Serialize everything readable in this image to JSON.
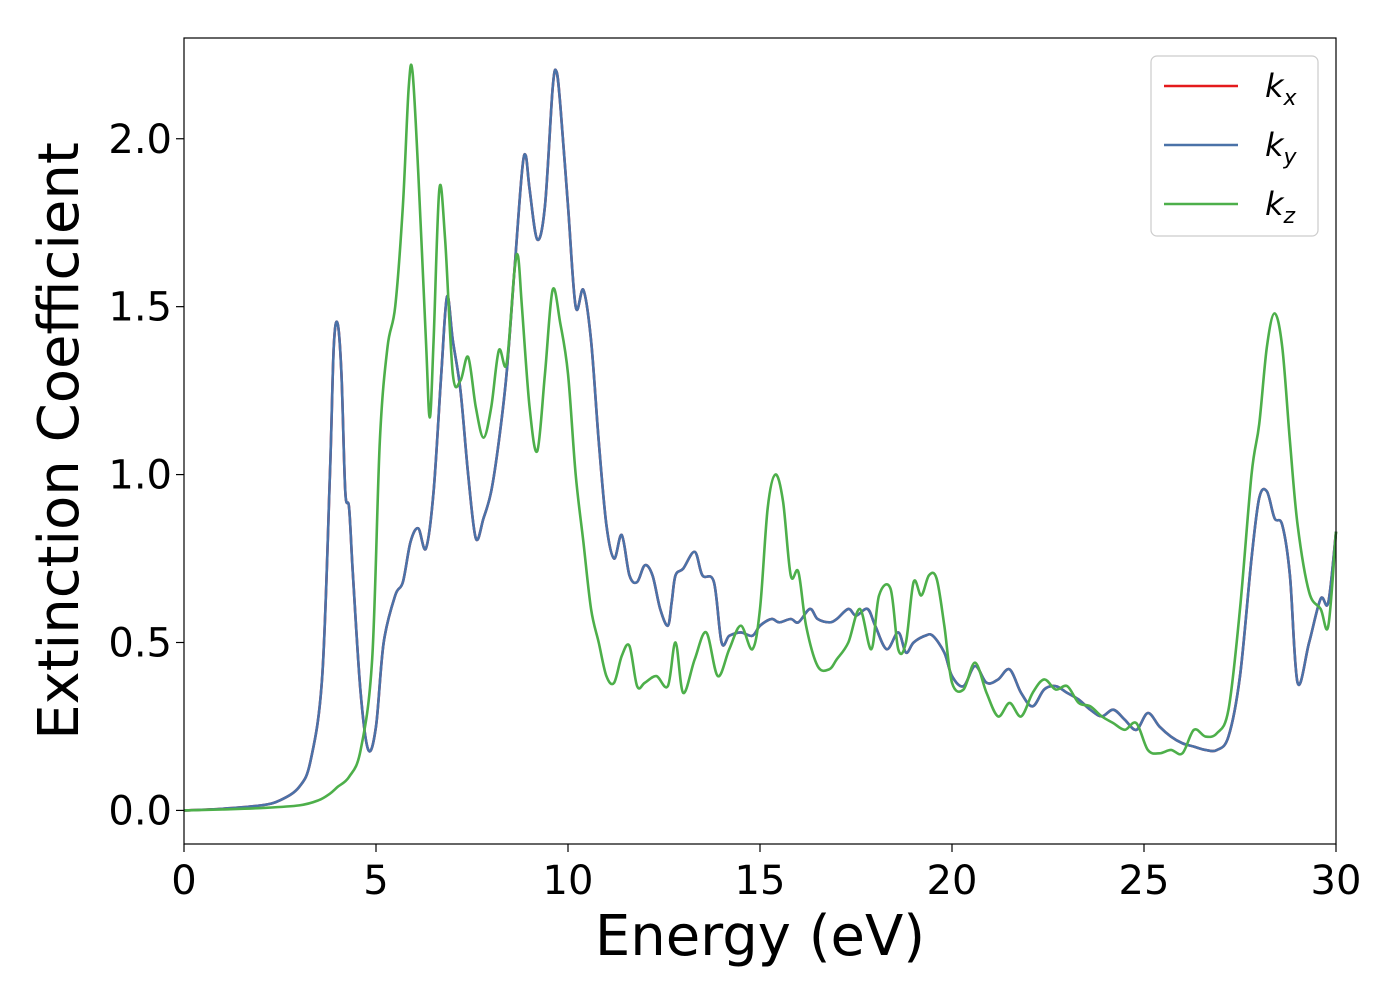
{
  "chart_data": {
    "type": "line",
    "title": "",
    "xlabel": "Energy (eV)",
    "ylabel": "Extinction Coefficient",
    "xlim": [
      0,
      30
    ],
    "ylim": [
      -0.1,
      2.3
    ],
    "xticks": [
      0,
      5,
      10,
      15,
      20,
      25,
      30
    ],
    "xtick_labels": [
      "0",
      "5",
      "10",
      "15",
      "20",
      "25",
      "30"
    ],
    "yticks": [
      0.0,
      0.5,
      1.0,
      1.5,
      2.0
    ],
    "ytick_labels": [
      "0.0",
      "0.5",
      "1.0",
      "1.5",
      "2.0"
    ],
    "grid": false,
    "legend_position": "top-right",
    "series": [
      {
        "name": "k",
        "subscript": "x",
        "color": "#e41a1c",
        "x": [
          0,
          1,
          2,
          2.5,
          3,
          3.3,
          3.6,
          3.8,
          3.9,
          4.0,
          4.1,
          4.2,
          4.3,
          4.4,
          4.6,
          4.8,
          5.0,
          5.2,
          5.5,
          5.7,
          5.9,
          6.1,
          6.3,
          6.5,
          6.7,
          6.85,
          7.0,
          7.2,
          7.4,
          7.6,
          7.8,
          8.0,
          8.2,
          8.4,
          8.6,
          8.8,
          8.9,
          9.0,
          9.2,
          9.4,
          9.6,
          9.7,
          9.8,
          10.0,
          10.2,
          10.4,
          10.6,
          10.8,
          11.0,
          11.2,
          11.4,
          11.6,
          11.8,
          12.0,
          12.2,
          12.4,
          12.6,
          12.7,
          12.8,
          13.0,
          13.3,
          13.5,
          13.8,
          14.0,
          14.2,
          14.5,
          14.8,
          15.0,
          15.3,
          15.5,
          15.8,
          16.0,
          16.3,
          16.5,
          16.8,
          17.0,
          17.3,
          17.5,
          17.8,
          18.0,
          18.3,
          18.6,
          18.8,
          19.0,
          19.3,
          19.5,
          19.8,
          20.0,
          20.3,
          20.6,
          20.9,
          21.2,
          21.5,
          21.8,
          22.1,
          22.4,
          22.7,
          23.0,
          23.3,
          23.6,
          23.9,
          24.2,
          24.5,
          24.8,
          25.1,
          25.4,
          25.7,
          26.0,
          26.3,
          26.6,
          26.9,
          27.2,
          27.5,
          27.8,
          28.0,
          28.2,
          28.4,
          28.6,
          28.8,
          29.0,
          29.3,
          29.6,
          29.8,
          30.0
        ],
        "y": [
          0.0,
          0.005,
          0.015,
          0.03,
          0.07,
          0.15,
          0.4,
          1.0,
          1.38,
          1.45,
          1.3,
          0.95,
          0.9,
          0.7,
          0.35,
          0.18,
          0.25,
          0.5,
          0.64,
          0.68,
          0.8,
          0.84,
          0.78,
          0.95,
          1.3,
          1.53,
          1.4,
          1.25,
          1.0,
          0.81,
          0.87,
          0.95,
          1.1,
          1.3,
          1.6,
          1.9,
          1.95,
          1.85,
          1.7,
          1.8,
          2.15,
          2.2,
          2.1,
          1.8,
          1.5,
          1.55,
          1.4,
          1.1,
          0.85,
          0.75,
          0.82,
          0.7,
          0.68,
          0.73,
          0.7,
          0.6,
          0.55,
          0.62,
          0.7,
          0.72,
          0.77,
          0.7,
          0.68,
          0.5,
          0.52,
          0.53,
          0.52,
          0.55,
          0.57,
          0.56,
          0.57,
          0.56,
          0.6,
          0.57,
          0.56,
          0.57,
          0.6,
          0.58,
          0.6,
          0.55,
          0.48,
          0.53,
          0.47,
          0.5,
          0.52,
          0.52,
          0.47,
          0.4,
          0.37,
          0.43,
          0.38,
          0.39,
          0.42,
          0.35,
          0.31,
          0.36,
          0.37,
          0.35,
          0.33,
          0.3,
          0.28,
          0.3,
          0.27,
          0.24,
          0.29,
          0.25,
          0.22,
          0.2,
          0.19,
          0.18,
          0.18,
          0.22,
          0.4,
          0.75,
          0.93,
          0.95,
          0.87,
          0.85,
          0.7,
          0.38,
          0.5,
          0.63,
          0.62,
          0.83
        ]
      },
      {
        "name": "k",
        "subscript": "y",
        "color": "#4a72a8",
        "x": [
          0,
          1,
          2,
          2.5,
          3,
          3.3,
          3.6,
          3.8,
          3.9,
          4.0,
          4.1,
          4.2,
          4.3,
          4.4,
          4.6,
          4.8,
          5.0,
          5.2,
          5.5,
          5.7,
          5.9,
          6.1,
          6.3,
          6.5,
          6.7,
          6.85,
          7.0,
          7.2,
          7.4,
          7.6,
          7.8,
          8.0,
          8.2,
          8.4,
          8.6,
          8.8,
          8.9,
          9.0,
          9.2,
          9.4,
          9.6,
          9.7,
          9.8,
          10.0,
          10.2,
          10.4,
          10.6,
          10.8,
          11.0,
          11.2,
          11.4,
          11.6,
          11.8,
          12.0,
          12.2,
          12.4,
          12.6,
          12.7,
          12.8,
          13.0,
          13.3,
          13.5,
          13.8,
          14.0,
          14.2,
          14.5,
          14.8,
          15.0,
          15.3,
          15.5,
          15.8,
          16.0,
          16.3,
          16.5,
          16.8,
          17.0,
          17.3,
          17.5,
          17.8,
          18.0,
          18.3,
          18.6,
          18.8,
          19.0,
          19.3,
          19.5,
          19.8,
          20.0,
          20.3,
          20.6,
          20.9,
          21.2,
          21.5,
          21.8,
          22.1,
          22.4,
          22.7,
          23.0,
          23.3,
          23.6,
          23.9,
          24.2,
          24.5,
          24.8,
          25.1,
          25.4,
          25.7,
          26.0,
          26.3,
          26.6,
          26.9,
          27.2,
          27.5,
          27.8,
          28.0,
          28.2,
          28.4,
          28.6,
          28.8,
          29.0,
          29.3,
          29.6,
          29.8,
          30.0
        ],
        "y": [
          0.0,
          0.005,
          0.015,
          0.03,
          0.07,
          0.15,
          0.4,
          1.0,
          1.38,
          1.45,
          1.3,
          0.95,
          0.9,
          0.7,
          0.35,
          0.18,
          0.25,
          0.5,
          0.64,
          0.68,
          0.8,
          0.84,
          0.78,
          0.95,
          1.3,
          1.53,
          1.4,
          1.25,
          1.0,
          0.81,
          0.87,
          0.95,
          1.1,
          1.3,
          1.6,
          1.9,
          1.95,
          1.85,
          1.7,
          1.8,
          2.15,
          2.2,
          2.1,
          1.8,
          1.5,
          1.55,
          1.4,
          1.1,
          0.85,
          0.75,
          0.82,
          0.7,
          0.68,
          0.73,
          0.7,
          0.6,
          0.55,
          0.62,
          0.7,
          0.72,
          0.77,
          0.7,
          0.68,
          0.5,
          0.52,
          0.53,
          0.52,
          0.55,
          0.57,
          0.56,
          0.57,
          0.56,
          0.6,
          0.57,
          0.56,
          0.57,
          0.6,
          0.58,
          0.6,
          0.55,
          0.48,
          0.53,
          0.47,
          0.5,
          0.52,
          0.52,
          0.47,
          0.4,
          0.37,
          0.43,
          0.38,
          0.39,
          0.42,
          0.35,
          0.31,
          0.36,
          0.37,
          0.35,
          0.33,
          0.3,
          0.28,
          0.3,
          0.27,
          0.24,
          0.29,
          0.25,
          0.22,
          0.2,
          0.19,
          0.18,
          0.18,
          0.22,
          0.4,
          0.75,
          0.93,
          0.95,
          0.87,
          0.85,
          0.7,
          0.38,
          0.5,
          0.63,
          0.62,
          0.83
        ]
      },
      {
        "name": "k",
        "subscript": "z",
        "color": "#4daf4a",
        "x": [
          0,
          1,
          2,
          3,
          3.5,
          3.8,
          4.0,
          4.3,
          4.6,
          4.9,
          5.1,
          5.3,
          5.5,
          5.7,
          5.85,
          5.95,
          6.1,
          6.3,
          6.4,
          6.5,
          6.65,
          6.8,
          7.0,
          7.2,
          7.4,
          7.6,
          7.8,
          8.0,
          8.2,
          8.4,
          8.6,
          8.7,
          8.8,
          9.0,
          9.2,
          9.4,
          9.6,
          9.8,
          10.0,
          10.2,
          10.4,
          10.6,
          10.8,
          11.0,
          11.2,
          11.4,
          11.6,
          11.8,
          12.0,
          12.3,
          12.6,
          12.8,
          13.0,
          13.3,
          13.6,
          13.9,
          14.2,
          14.5,
          14.8,
          15.0,
          15.2,
          15.4,
          15.6,
          15.8,
          16.0,
          16.2,
          16.5,
          16.8,
          17.0,
          17.3,
          17.6,
          17.9,
          18.1,
          18.4,
          18.6,
          18.8,
          19.0,
          19.2,
          19.4,
          19.6,
          19.8,
          20.0,
          20.3,
          20.6,
          20.9,
          21.2,
          21.5,
          21.8,
          22.1,
          22.4,
          22.7,
          23.0,
          23.3,
          23.6,
          23.9,
          24.2,
          24.5,
          24.8,
          25.1,
          25.4,
          25.7,
          26.0,
          26.3,
          26.6,
          26.9,
          27.2,
          27.5,
          27.8,
          28.0,
          28.2,
          28.4,
          28.6,
          28.8,
          29.0,
          29.3,
          29.6,
          29.8,
          30.0
        ],
        "y": [
          0.0,
          0.003,
          0.007,
          0.015,
          0.03,
          0.05,
          0.07,
          0.1,
          0.18,
          0.45,
          1.1,
          1.38,
          1.5,
          1.8,
          2.15,
          2.2,
          1.9,
          1.4,
          1.17,
          1.4,
          1.85,
          1.7,
          1.3,
          1.28,
          1.35,
          1.2,
          1.11,
          1.2,
          1.37,
          1.33,
          1.6,
          1.65,
          1.5,
          1.2,
          1.07,
          1.3,
          1.55,
          1.45,
          1.3,
          1.0,
          0.8,
          0.6,
          0.5,
          0.4,
          0.38,
          0.46,
          0.49,
          0.37,
          0.38,
          0.4,
          0.37,
          0.5,
          0.35,
          0.45,
          0.53,
          0.4,
          0.48,
          0.55,
          0.48,
          0.6,
          0.9,
          1.0,
          0.92,
          0.7,
          0.71,
          0.55,
          0.43,
          0.42,
          0.45,
          0.5,
          0.6,
          0.48,
          0.64,
          0.66,
          0.48,
          0.5,
          0.68,
          0.64,
          0.7,
          0.69,
          0.55,
          0.38,
          0.36,
          0.44,
          0.35,
          0.28,
          0.32,
          0.28,
          0.35,
          0.39,
          0.36,
          0.37,
          0.32,
          0.31,
          0.28,
          0.26,
          0.24,
          0.26,
          0.18,
          0.17,
          0.18,
          0.17,
          0.24,
          0.22,
          0.23,
          0.3,
          0.6,
          1.0,
          1.15,
          1.38,
          1.48,
          1.38,
          1.1,
          0.85,
          0.65,
          0.6,
          0.55,
          0.83
        ]
      }
    ]
  }
}
